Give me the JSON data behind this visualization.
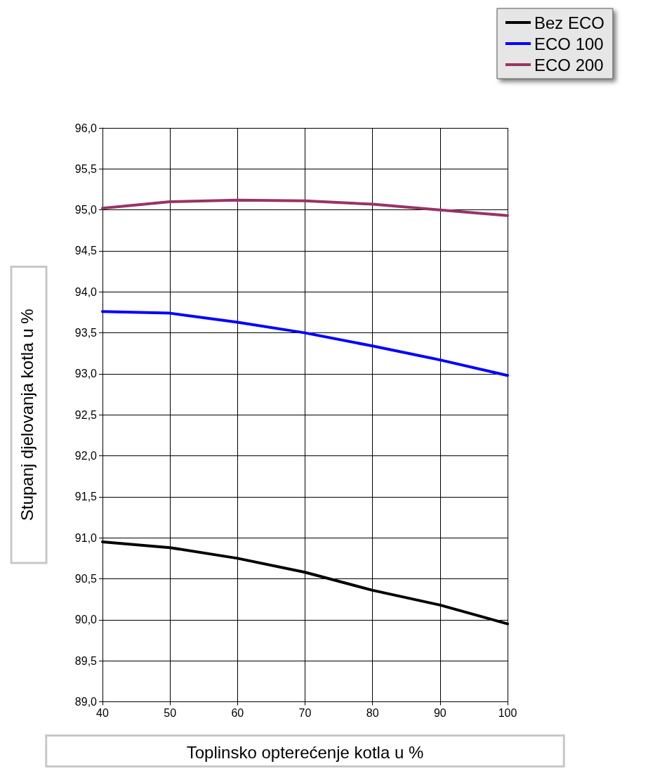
{
  "chart_data": {
    "type": "line",
    "xlabel": "Toplinsko opterećenje kotla u %",
    "ylabel": "Stupanj djelovanja kotla u %",
    "x": [
      40,
      50,
      60,
      70,
      80,
      90,
      100
    ],
    "series": [
      {
        "name": "Bez ECO",
        "color": "#000000",
        "values": [
          90.95,
          90.88,
          90.75,
          90.58,
          90.36,
          90.18,
          89.95
        ]
      },
      {
        "name": "ECO 100",
        "color": "#0000ff",
        "values": [
          93.76,
          93.74,
          93.63,
          93.5,
          93.34,
          93.17,
          92.98
        ]
      },
      {
        "name": "ECO 200",
        "color": "#993366",
        "values": [
          95.02,
          95.1,
          95.12,
          95.11,
          95.07,
          95.0,
          94.93
        ]
      }
    ],
    "xlim": [
      40,
      100
    ],
    "xticks": [
      40,
      50,
      60,
      70,
      80,
      90,
      100
    ],
    "ylim": [
      89,
      96
    ],
    "yticks": [
      {
        "value": 89,
        "label": "89,0"
      },
      {
        "value": 89.5,
        "label": "89,5"
      },
      {
        "value": 90,
        "label": "90,0"
      },
      {
        "value": 90.5,
        "label": "90,5"
      },
      {
        "value": 91,
        "label": "91,0"
      },
      {
        "value": 91.5,
        "label": "91,5"
      },
      {
        "value": 92,
        "label": "92,0"
      },
      {
        "value": 92.5,
        "label": "92,5"
      },
      {
        "value": 93,
        "label": "93,0"
      },
      {
        "value": 93.5,
        "label": "93,5"
      },
      {
        "value": 94,
        "label": "94,0"
      },
      {
        "value": 94.5,
        "label": "94,5"
      },
      {
        "value": 95,
        "label": "95,0"
      },
      {
        "value": 95.5,
        "label": "95,5"
      },
      {
        "value": 96,
        "label": "96,0"
      }
    ],
    "grid": true,
    "legend": "top right",
    "marker": "none",
    "line_style": "solid"
  }
}
